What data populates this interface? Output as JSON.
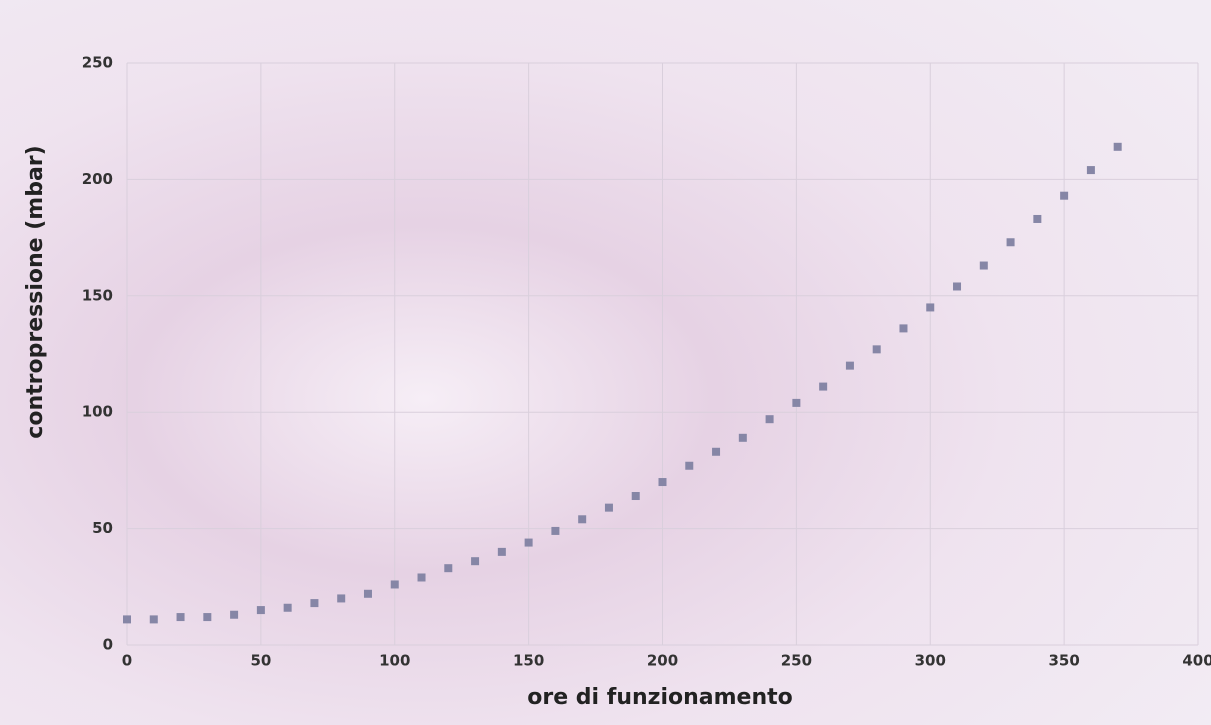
{
  "chart_data": {
    "type": "scatter",
    "xlabel": "ore di funzionamento",
    "ylabel": "contropressione (mbar)",
    "x": [
      0,
      10,
      20,
      30,
      40,
      50,
      60,
      70,
      80,
      90,
      100,
      110,
      120,
      130,
      140,
      150,
      160,
      170,
      180,
      190,
      200,
      210,
      220,
      230,
      240,
      250,
      260,
      270,
      280,
      290,
      300,
      310,
      320,
      330,
      340,
      350,
      360,
      370
    ],
    "values": [
      11,
      11,
      12,
      12,
      13,
      15,
      16,
      18,
      20,
      22,
      26,
      29,
      33,
      36,
      40,
      44,
      49,
      54,
      59,
      64,
      70,
      77,
      83,
      89,
      97,
      104,
      111,
      120,
      127,
      136,
      145,
      154,
      163,
      173,
      183,
      193,
      204,
      214
    ],
    "color": "#8686a6",
    "xlim": [
      0,
      400
    ],
    "xticks": [
      0,
      50,
      100,
      150,
      200,
      250,
      300,
      350,
      400
    ],
    "ylim": [
      0,
      250
    ],
    "yticks": [
      0,
      50,
      100,
      150,
      200,
      250
    ],
    "grid": true
  }
}
